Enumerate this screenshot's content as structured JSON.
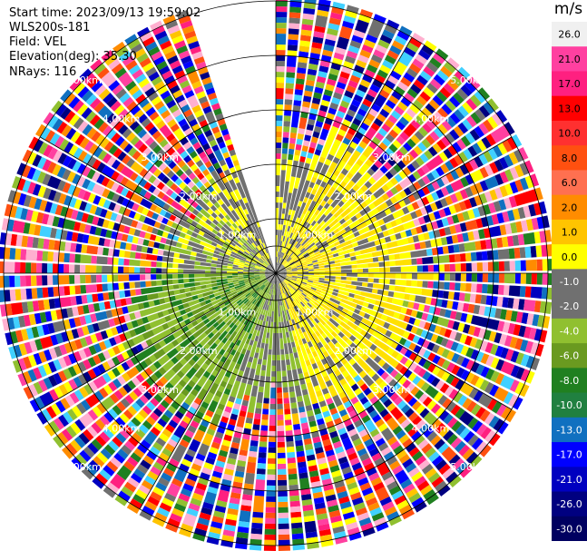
{
  "chart_data": {
    "type": "ppi",
    "start_time_label": "Start time: 2023/09/13 19:59:02",
    "instrument": "WLS200s-181",
    "field_label": "Field: VEL",
    "elevation_label": "Elevation(deg): 35.30",
    "nrays_label": "NRays: 116",
    "range_rings_km": [
      1.0,
      2.0,
      3.0,
      4.0,
      5.0
    ],
    "range_labels": [
      "1.00km",
      "2.00km",
      "3.00km",
      "4.00km",
      "5.00km"
    ],
    "max_range_km": 5.0,
    "missing_sector_deg": [
      -20,
      0
    ],
    "colorbar": {
      "unit": "m/s",
      "ticks": [
        "26.0",
        "21.0",
        "17.0",
        "13.0",
        "10.0",
        "8.0",
        "6.0",
        "2.0",
        "1.0",
        "0.0",
        "-1.0",
        "-2.0",
        "-4.0",
        "-6.0",
        "-8.0",
        "-10.0",
        "-13.0",
        "-17.0",
        "-21.0",
        "-26.0",
        "-30.0"
      ],
      "colors": [
        "#f0f0f0",
        "#ff40a0",
        "#ff2080",
        "#ff0000",
        "#ff3030",
        "#ff5010",
        "#ff7050",
        "#ff8c00",
        "#ffc400",
        "#ffff00",
        "#707070",
        "#707070",
        "#90c030",
        "#6a9a20",
        "#208020",
        "#208040",
        "#1070c0",
        "#0000ff",
        "#0000c0",
        "#000080",
        "#000060"
      ]
    }
  }
}
